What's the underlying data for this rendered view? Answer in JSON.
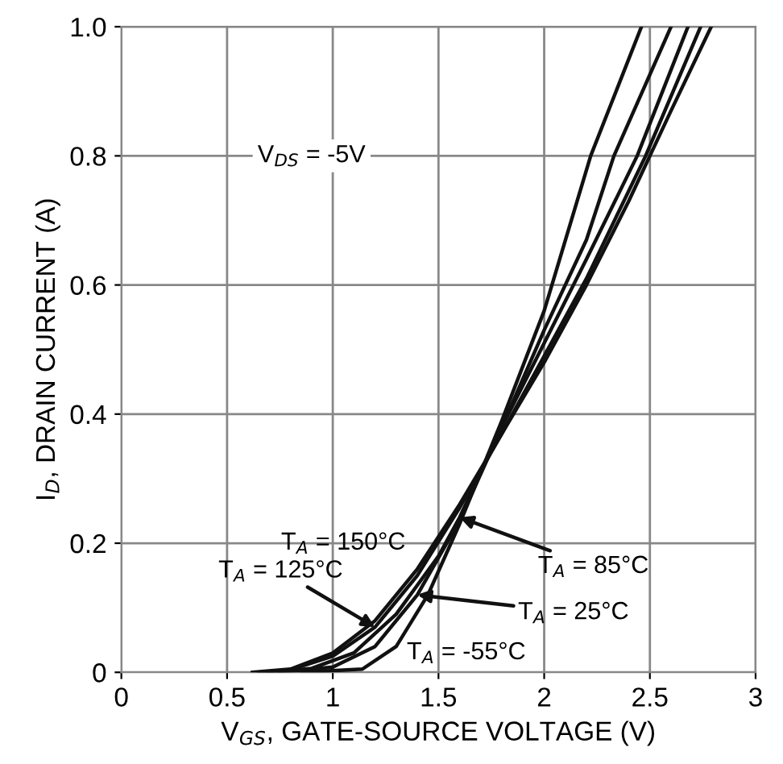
{
  "chart_data": {
    "type": "line",
    "xlabel": "V$_{GS}$, GATE-SOURCE VOLTAGE (V)",
    "ylabel": "I$_{D}$, DRAIN CURRENT (A)",
    "xlim": [
      0,
      3
    ],
    "ylim": [
      0,
      1
    ],
    "xticks": [
      0,
      0.5,
      1,
      1.5,
      2,
      2.5,
      3
    ],
    "yticks": [
      0,
      0.2,
      0.4,
      0.6,
      0.8,
      {
        "value": 1,
        "label": "1.0"
      }
    ],
    "grid": true,
    "marker": "none",
    "line_style": "solid",
    "series": [
      {
        "color": "#111111",
        "x": [
          0.62,
          0.8,
          1.0,
          1.2,
          1.4,
          1.6,
          1.8,
          2.0,
          2.2,
          2.4,
          2.5,
          2.6,
          2.79
        ],
        "values": [
          0,
          0.005,
          0.03,
          0.08,
          0.16,
          0.26,
          0.37,
          0.48,
          0.6,
          0.73,
          0.8,
          0.87,
          1.0
        ]
      },
      {
        "color": "#111111",
        "x": [
          0.65,
          0.8,
          1.0,
          1.2,
          1.4,
          1.6,
          1.8,
          2.0,
          2.2,
          2.48,
          2.74
        ],
        "values": [
          0,
          0.004,
          0.025,
          0.07,
          0.15,
          0.255,
          0.37,
          0.49,
          0.61,
          0.8,
          1.0
        ]
      },
      {
        "color": "#111111",
        "x": [
          0.7,
          0.9,
          1.1,
          1.3,
          1.5,
          1.6,
          1.8,
          2.0,
          2.2,
          2.44,
          2.68
        ],
        "values": [
          0,
          0.006,
          0.03,
          0.09,
          0.18,
          0.24,
          0.38,
          0.51,
          0.64,
          0.8,
          1.0
        ]
      },
      {
        "color": "#111111",
        "x": [
          0.75,
          1.0,
          1.2,
          1.4,
          1.6,
          1.8,
          2.0,
          2.2,
          2.33,
          2.6
        ],
        "values": [
          0,
          0.008,
          0.04,
          0.12,
          0.235,
          0.38,
          0.53,
          0.67,
          0.8,
          1.0
        ]
      },
      {
        "color": "#111111",
        "x": [
          0.85,
          1.14,
          1.3,
          1.45,
          1.6,
          1.8,
          2.0,
          2.22,
          2.46
        ],
        "values": [
          0,
          0.005,
          0.04,
          0.12,
          0.23,
          0.39,
          0.56,
          0.8,
          1.0
        ]
      }
    ],
    "annotations": [
      "V$_{DS}$ = -5V",
      "T$_{A}$ = 150°C",
      {
        "text": "T$_{A}$ = 125°C",
        "x": 1.2,
        "y": 0.07
      },
      {
        "text": "T$_{A}$ = 85°C",
        "x": 1.6,
        "y": 0.24
      },
      {
        "text": "T$_{A}$ = 25°C",
        "x": 1.4,
        "y": 0.12
      },
      "T$_{A}$ = -55°C"
    ]
  }
}
